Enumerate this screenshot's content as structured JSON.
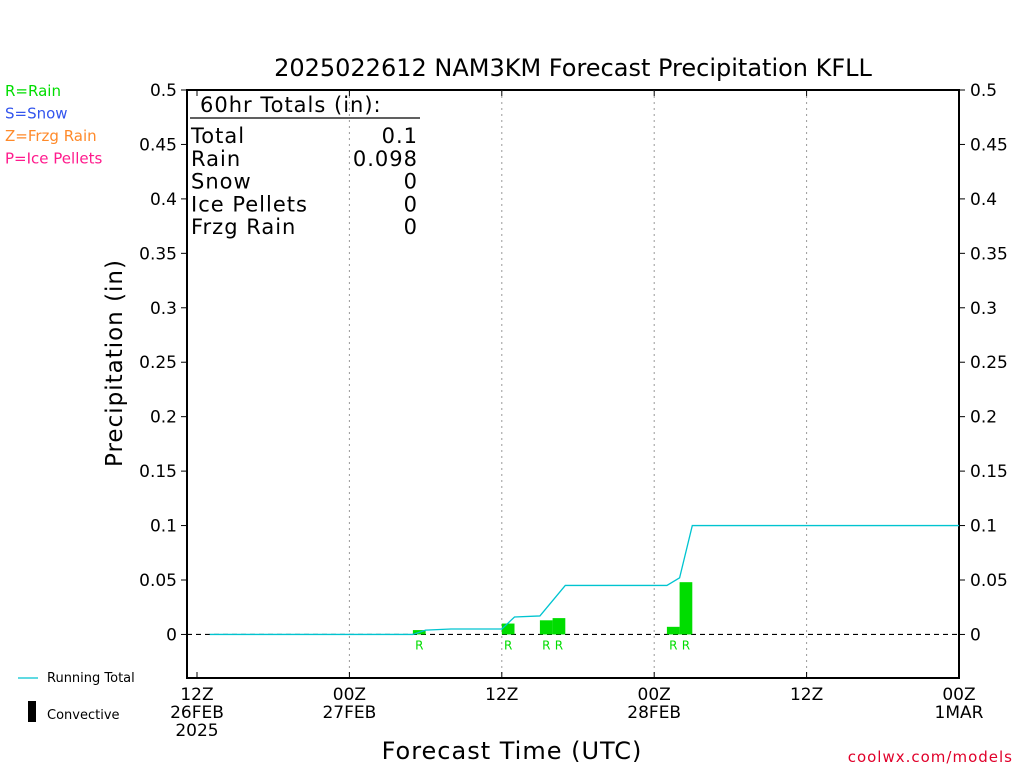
{
  "chart_data": {
    "type": "bar",
    "title": "2025022612 NAM3KM Forecast Precipitation KFLL",
    "xlabel": "Forecast Time (UTC)",
    "ylabel": "Precipitation (in)",
    "ylim": [
      -0.04,
      0.5
    ],
    "xlim_hours": [
      0,
      60
    ],
    "y_ticks": [
      0,
      0.05,
      0.1,
      0.15,
      0.2,
      0.25,
      0.3,
      0.35,
      0.4,
      0.45,
      0.5
    ],
    "y_tick_labels": [
      "0",
      "0.05",
      "0.1",
      "0.15",
      "0.2",
      "0.25",
      "0.3",
      "0.35",
      "0.4",
      "0.45",
      "0.5"
    ],
    "x_ticks": [
      {
        "hour": 0,
        "lines": [
          "12Z",
          "26FEB",
          "2025"
        ]
      },
      {
        "hour": 12,
        "lines": [
          "00Z",
          "27FEB"
        ]
      },
      {
        "hour": 24,
        "lines": [
          "12Z"
        ]
      },
      {
        "hour": 36,
        "lines": [
          "00Z",
          "28FEB"
        ]
      },
      {
        "hour": 48,
        "lines": [
          "12Z"
        ]
      },
      {
        "hour": 60,
        "lines": [
          "00Z",
          "1MAR"
        ]
      }
    ],
    "grid": "vertical-dotted",
    "series": [
      {
        "name": "Rain",
        "kind": "bar",
        "color": "#00dd00",
        "points": [
          {
            "hour": 18,
            "value": 0.004,
            "label": "R"
          },
          {
            "hour": 25,
            "value": 0.01,
            "label": "R"
          },
          {
            "hour": 28,
            "value": 0.013,
            "label": "R"
          },
          {
            "hour": 29,
            "value": 0.015,
            "label": "R"
          },
          {
            "hour": 38,
            "value": 0.007,
            "label": "R"
          },
          {
            "hour": 39,
            "value": 0.048,
            "label": "R"
          }
        ]
      },
      {
        "name": "Running Total",
        "kind": "line",
        "color": "#00c4d0",
        "points": [
          [
            1,
            0
          ],
          [
            17,
            0
          ],
          [
            18,
            0.004
          ],
          [
            20,
            0.005
          ],
          [
            24,
            0.005
          ],
          [
            25,
            0.016
          ],
          [
            27,
            0.017
          ],
          [
            29,
            0.045
          ],
          [
            37,
            0.045
          ],
          [
            38,
            0.052
          ],
          [
            39,
            0.1
          ],
          [
            60,
            0.1
          ]
        ]
      }
    ],
    "totals_box": {
      "header": "60hr Totals (in):",
      "rows": [
        {
          "label": "Total",
          "value": "0.1"
        },
        {
          "label": "Rain",
          "value": "0.098"
        },
        {
          "label": "Snow",
          "value": "0"
        },
        {
          "label": "Ice Pellets",
          "value": "0"
        },
        {
          "label": "Frzg Rain",
          "value": "0"
        }
      ]
    },
    "type_legend": [
      {
        "text": "R=Rain",
        "color": "#00dd00"
      },
      {
        "text": "S=Snow",
        "color": "#3355ee"
      },
      {
        "text": "Z=Frzg Rain",
        "color": "#ff8a2a"
      },
      {
        "text": "P=Ice Pellets",
        "color": "#ff1a8c"
      }
    ],
    "bottom_legend": {
      "running_total": "Running Total",
      "convective": "Convective"
    },
    "credit": "coolwx.com/models"
  }
}
